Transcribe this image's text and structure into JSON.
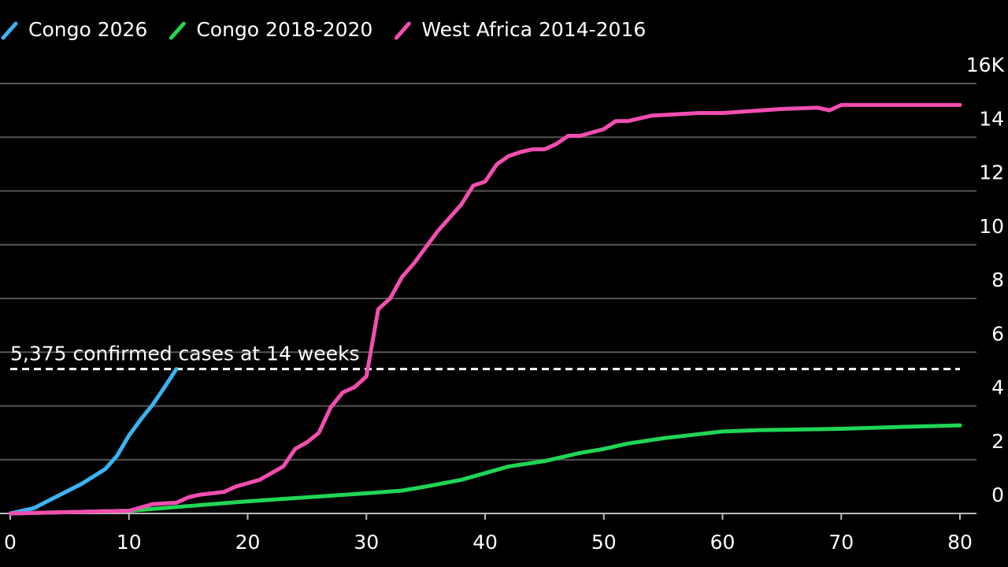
{
  "chart_data": {
    "type": "line",
    "series": [
      {
        "name": "Congo 2026",
        "color": "#3ab4f2",
        "x": [
          0,
          2,
          4,
          6,
          8,
          9,
          10,
          11,
          12,
          13,
          14
        ],
        "values": [
          0,
          0.2,
          0.65,
          1.1,
          1.65,
          2.15,
          2.9,
          3.5,
          4.05,
          4.7,
          5.375
        ]
      },
      {
        "name": "Congo 2018-2020",
        "color": "#1fd655",
        "x": [
          0,
          10,
          20,
          25,
          30,
          33,
          35,
          38,
          40,
          42,
          45,
          48,
          50,
          52,
          55,
          58,
          60,
          63,
          70,
          75,
          80
        ],
        "values": [
          0,
          0.1,
          0.45,
          0.6,
          0.75,
          0.85,
          1.0,
          1.25,
          1.5,
          1.75,
          1.95,
          2.25,
          2.4,
          2.6,
          2.8,
          2.95,
          3.05,
          3.1,
          3.15,
          3.22,
          3.28
        ]
      },
      {
        "name": "West Africa 2014-2016",
        "color": "#f24eb0",
        "x": [
          0,
          10,
          12,
          14,
          15,
          16,
          18,
          19,
          21,
          23,
          24,
          25,
          26,
          27,
          28,
          29,
          30,
          31,
          32,
          33,
          34,
          35,
          36,
          37,
          38,
          39,
          40,
          41,
          42,
          43,
          44,
          45,
          46,
          47,
          48,
          50,
          51,
          52,
          54,
          58,
          60,
          65,
          68,
          69,
          70,
          80
        ],
        "values": [
          0,
          0.1,
          0.35,
          0.4,
          0.6,
          0.7,
          0.8,
          1.0,
          1.25,
          1.75,
          2.4,
          2.65,
          3.0,
          3.95,
          4.5,
          4.7,
          5.1,
          7.6,
          8.0,
          8.8,
          9.3,
          9.9,
          10.5,
          11.0,
          11.5,
          12.2,
          12.35,
          13.0,
          13.3,
          13.45,
          13.55,
          13.55,
          13.75,
          14.05,
          14.05,
          14.3,
          14.6,
          14.6,
          14.8,
          14.9,
          14.9,
          15.05,
          15.1,
          15.0,
          15.2,
          15.2
        ]
      }
    ],
    "annotation": {
      "text": "5,375 confirmed cases at 14 weeks",
      "value": 5.375
    },
    "xlim": [
      0,
      80
    ],
    "xticks": [
      0,
      10,
      20,
      30,
      40,
      50,
      60,
      70,
      80
    ],
    "ylim": [
      0,
      16
    ],
    "yticks": [
      0,
      2,
      4,
      6,
      8,
      10,
      12,
      14,
      {
        "value": 16,
        "label": "16K"
      }
    ],
    "grid": true,
    "legend": "top-left"
  }
}
